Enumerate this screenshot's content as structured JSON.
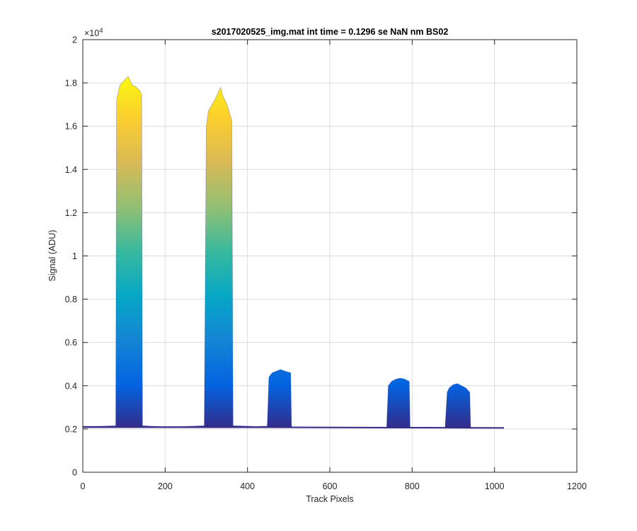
{
  "chart_data": {
    "type": "area",
    "title": "s2017020525_img.mat int time = 0.1296 se  NaN nm BS02",
    "xlabel": "Track Pixels",
    "ylabel": "Signal (ADU)",
    "xlim": [
      0,
      1200
    ],
    "ylim": [
      0,
      20000
    ],
    "y_exponent_label": "×10",
    "y_exponent_power": "4",
    "xticks": [
      0,
      200,
      400,
      600,
      800,
      1000,
      1200
    ],
    "xtick_labels": [
      "0",
      "200",
      "400",
      "600",
      "800",
      "1000",
      "1200"
    ],
    "yticks": [
      0,
      2000,
      4000,
      6000,
      8000,
      10000,
      12000,
      14000,
      16000,
      18000,
      20000
    ],
    "ytick_labels": [
      "0",
      "0.2",
      "0.4",
      "0.6",
      "0.8",
      "1",
      "1.2",
      "1.4",
      "1.6",
      "1.8",
      "2"
    ],
    "grid": true,
    "colormap": "parula",
    "colormap_stops": [
      "#352a87",
      "#0363e1",
      "#1485d4",
      "#06a7c6",
      "#38b99e",
      "#92bf73",
      "#d9ba56",
      "#fcce2e",
      "#f9fb0e"
    ],
    "series": [
      {
        "x": [
          0,
          80,
          82,
          90,
          100,
          110,
          120,
          130,
          140,
          143,
          145,
          200,
          250,
          295,
          300,
          305,
          320,
          335,
          340,
          350,
          360,
          362,
          365,
          420,
          448,
          452,
          460,
          480,
          495,
          505,
          507,
          510,
          600,
          700,
          738,
          742,
          750,
          760,
          770,
          780,
          793,
          795,
          800,
          850,
          880,
          885,
          890,
          900,
          910,
          920,
          930,
          940,
          942,
          945,
          1000,
          1023
        ],
        "y": [
          2100,
          2150,
          17200,
          17900,
          18100,
          18300,
          17900,
          17800,
          17600,
          17400,
          2150,
          2100,
          2120,
          2150,
          16000,
          16700,
          17200,
          17800,
          17400,
          17000,
          16400,
          16200,
          2150,
          2120,
          2130,
          4400,
          4600,
          4750,
          4650,
          4600,
          2120,
          2100,
          2090,
          2080,
          2080,
          4000,
          4200,
          4300,
          4350,
          4320,
          4200,
          2090,
          2080,
          2070,
          2070,
          3700,
          3900,
          4050,
          4100,
          4000,
          3900,
          3700,
          2070,
          2060,
          2060,
          2050
        ]
      }
    ],
    "baseline": 2050
  }
}
